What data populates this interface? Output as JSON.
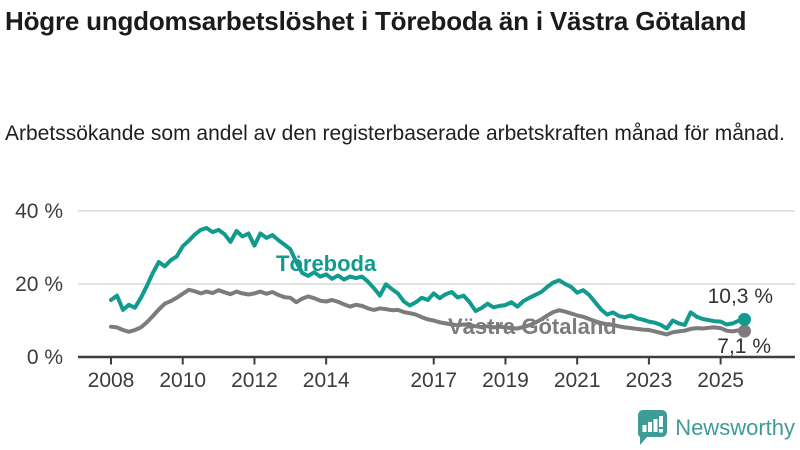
{
  "header": {
    "title": "Högre ungdomsarbetslöshet i Töreboda än i Västra Götaland",
    "subtitle": "Arbetssökande som andel av den registerbaserade arbetskraften månad för månad."
  },
  "footer": {
    "brand": "Newsworthy"
  },
  "chart_data": {
    "type": "line",
    "title": "Högre ungdomsarbetslöshet i Töreboda än i Västra Götaland",
    "subtitle": "Arbetssökande som andel av den registerbaserade arbetskraften månad för månad.",
    "unit": "%",
    "grid": true,
    "legend_position": "inline",
    "axis_color": "#3e3e3c",
    "grid_color": "#d9d9d9",
    "x_axis": {
      "ticks": [
        2008,
        2010,
        2012,
        2014,
        2017,
        2019,
        2021,
        2023,
        2025
      ],
      "tick_labels": [
        "2008",
        "2010",
        "2012",
        "2014",
        "2017",
        "2019",
        "2021",
        "2023",
        "2025"
      ],
      "range": [
        2007.1,
        2026.1
      ]
    },
    "y_axis": {
      "ticks": [
        0,
        20,
        40
      ],
      "tick_labels": [
        "0 %",
        "20 %",
        "40 %"
      ],
      "range": [
        0,
        44
      ]
    },
    "series": [
      {
        "id": "vastra-gotaland",
        "name": "Västra Götaland",
        "color": "#7c7c7c",
        "end_label": "7,1 %",
        "end_value": 7.1,
        "start_year": 2008,
        "points_per_year": 6,
        "values": [
          8.3,
          8.1,
          7.4,
          6.9,
          7.4,
          8.1,
          9.5,
          11.2,
          13.0,
          14.6,
          15.3,
          16.2,
          17.3,
          18.4,
          18.0,
          17.4,
          17.9,
          17.5,
          18.3,
          17.7,
          17.2,
          17.9,
          17.4,
          17.1,
          17.4,
          17.9,
          17.3,
          17.8,
          17.0,
          16.4,
          16.2,
          15.0,
          16.0,
          16.6,
          16.1,
          15.4,
          15.2,
          15.6,
          15.1,
          14.4,
          13.8,
          14.3,
          14.0,
          13.3,
          12.9,
          13.3,
          13.1,
          12.8,
          12.9,
          12.3,
          12.0,
          11.6,
          10.9,
          10.3,
          10.0,
          9.5,
          9.2,
          8.9,
          8.7,
          8.9,
          8.7,
          8.4,
          8.2,
          8.4,
          8.1,
          8.3,
          8.1,
          7.9,
          7.8,
          8.2,
          8.7,
          9.4,
          10.3,
          11.4,
          12.3,
          12.8,
          12.4,
          11.9,
          11.4,
          11.0,
          10.4,
          9.8,
          9.3,
          8.9,
          8.8,
          8.4,
          8.1,
          7.9,
          7.7,
          7.5,
          7.4,
          7.0,
          6.6,
          6.2,
          6.8,
          7.0,
          7.2,
          7.7,
          7.9,
          7.8,
          8.0,
          8.1,
          7.9,
          7.2,
          7.0,
          7.3,
          7.1
        ]
      },
      {
        "id": "toreboda",
        "name": "Töreboda",
        "color": "#119a8d",
        "end_label": "10,3 %",
        "end_value": 10.3,
        "start_year": 2008,
        "points_per_year": 6,
        "values": [
          15.6,
          16.8,
          12.9,
          14.3,
          13.5,
          16.2,
          19.5,
          23.0,
          26.0,
          24.8,
          26.5,
          27.5,
          30.3,
          31.8,
          33.5,
          34.8,
          35.3,
          34.2,
          34.8,
          33.6,
          31.5,
          34.5,
          33.0,
          33.8,
          30.5,
          33.8,
          32.6,
          33.4,
          32.0,
          30.8,
          29.5,
          26.0,
          23.0,
          22.2,
          23.2,
          22.0,
          22.6,
          21.4,
          22.3,
          21.2,
          22.0,
          21.6,
          22.0,
          20.6,
          18.8,
          16.8,
          19.9,
          18.6,
          17.4,
          15.2,
          14.1,
          15.0,
          16.2,
          15.6,
          17.4,
          16.1,
          17.2,
          17.8,
          16.3,
          16.8,
          15.0,
          12.6,
          13.4,
          14.6,
          13.6,
          14.0,
          14.2,
          15.0,
          13.8,
          15.3,
          16.2,
          17.0,
          17.8,
          19.2,
          20.4,
          21.0,
          20.0,
          19.2,
          17.6,
          18.3,
          17.0,
          15.0,
          13.0,
          11.6,
          12.2,
          11.2,
          10.9,
          11.4,
          10.6,
          10.2,
          9.7,
          9.4,
          8.8,
          7.8,
          10.0,
          9.2,
          8.8,
          12.2,
          11.0,
          10.4,
          10.1,
          9.8,
          9.7,
          8.9,
          9.2,
          9.9,
          10.3
        ]
      }
    ]
  }
}
